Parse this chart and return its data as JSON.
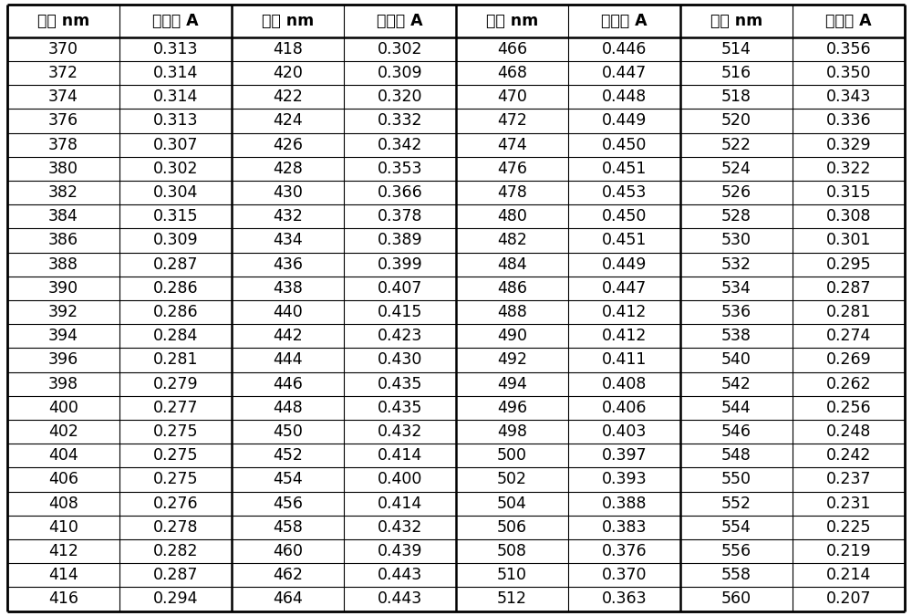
{
  "header": [
    "波长 nm",
    "吸光度 A",
    "波长 nm",
    "吸光度 A",
    "波长 nm",
    "吸光度 A",
    "波长 nm",
    "吸光度 A"
  ],
  "col1_wl": [
    370,
    372,
    374,
    376,
    378,
    380,
    382,
    384,
    386,
    388,
    390,
    392,
    394,
    396,
    398,
    400,
    402,
    404,
    406,
    408,
    410,
    412,
    414,
    416
  ],
  "col1_ab": [
    0.313,
    0.314,
    0.314,
    0.313,
    0.307,
    0.302,
    0.304,
    0.315,
    0.309,
    0.287,
    0.286,
    0.286,
    0.284,
    0.281,
    0.279,
    0.277,
    0.275,
    0.275,
    0.275,
    0.276,
    0.278,
    0.282,
    0.287,
    0.294
  ],
  "col2_wl": [
    418,
    420,
    422,
    424,
    426,
    428,
    430,
    432,
    434,
    436,
    438,
    440,
    442,
    444,
    446,
    448,
    450,
    452,
    454,
    456,
    458,
    460,
    462,
    464
  ],
  "col2_ab": [
    0.302,
    0.309,
    0.32,
    0.332,
    0.342,
    0.353,
    0.366,
    0.378,
    0.389,
    0.399,
    0.407,
    0.415,
    0.423,
    0.43,
    0.435,
    0.435,
    0.432,
    0.414,
    0.4,
    0.414,
    0.432,
    0.439,
    0.443,
    0.443
  ],
  "col3_wl": [
    466,
    468,
    470,
    472,
    474,
    476,
    478,
    480,
    482,
    484,
    486,
    488,
    490,
    492,
    494,
    496,
    498,
    500,
    502,
    504,
    506,
    508,
    510,
    512
  ],
  "col3_ab": [
    0.446,
    0.447,
    0.448,
    0.449,
    0.45,
    0.451,
    0.453,
    0.45,
    0.451,
    0.449,
    0.447,
    0.412,
    0.412,
    0.411,
    0.408,
    0.406,
    0.403,
    0.397,
    0.393,
    0.388,
    0.383,
    0.376,
    0.37,
    0.363
  ],
  "col4_wl": [
    514,
    516,
    518,
    520,
    522,
    524,
    526,
    528,
    530,
    532,
    534,
    536,
    538,
    540,
    542,
    544,
    546,
    548,
    550,
    552,
    554,
    556,
    558,
    560
  ],
  "col4_ab": [
    0.356,
    0.35,
    0.343,
    0.336,
    0.329,
    0.322,
    0.315,
    0.308,
    0.301,
    0.295,
    0.287,
    0.281,
    0.274,
    0.269,
    0.262,
    0.256,
    0.248,
    0.242,
    0.237,
    0.231,
    0.225,
    0.219,
    0.214,
    0.207
  ],
  "bg_color": "#ffffff",
  "text_color": "#000000",
  "header_fontsize": 12.5,
  "cell_fontsize": 12.5,
  "figsize": [
    10.0,
    6.75
  ],
  "dpi": 100
}
